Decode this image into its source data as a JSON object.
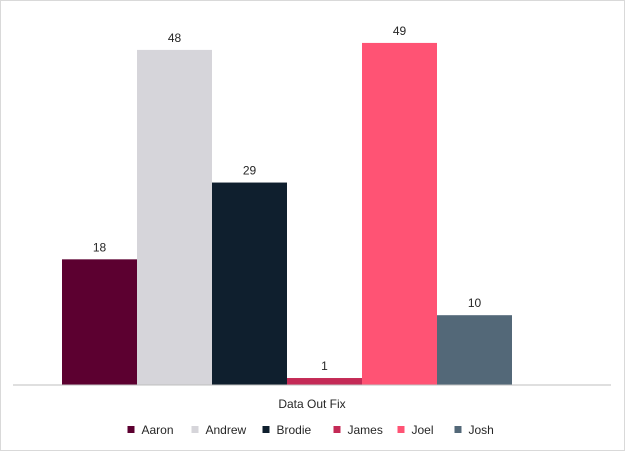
{
  "chart_data": {
    "type": "bar",
    "categories": [
      "Data Out Fix"
    ],
    "series": [
      {
        "name": "Aaron",
        "values": [
          18
        ],
        "color": "#5c0030"
      },
      {
        "name": "Andrew",
        "values": [
          48
        ],
        "color": "#d6d5da"
      },
      {
        "name": "Brodie",
        "values": [
          29
        ],
        "color": "#0f1f2e"
      },
      {
        "name": "James",
        "values": [
          1
        ],
        "color": "#c42a56"
      },
      {
        "name": "Joel",
        "values": [
          49
        ],
        "color": "#ff5374"
      },
      {
        "name": "Josh",
        "values": [
          10
        ],
        "color": "#536878"
      }
    ],
    "ylim": [
      0,
      53
    ],
    "grid": false,
    "legend": "bottom",
    "data_labels": true
  }
}
